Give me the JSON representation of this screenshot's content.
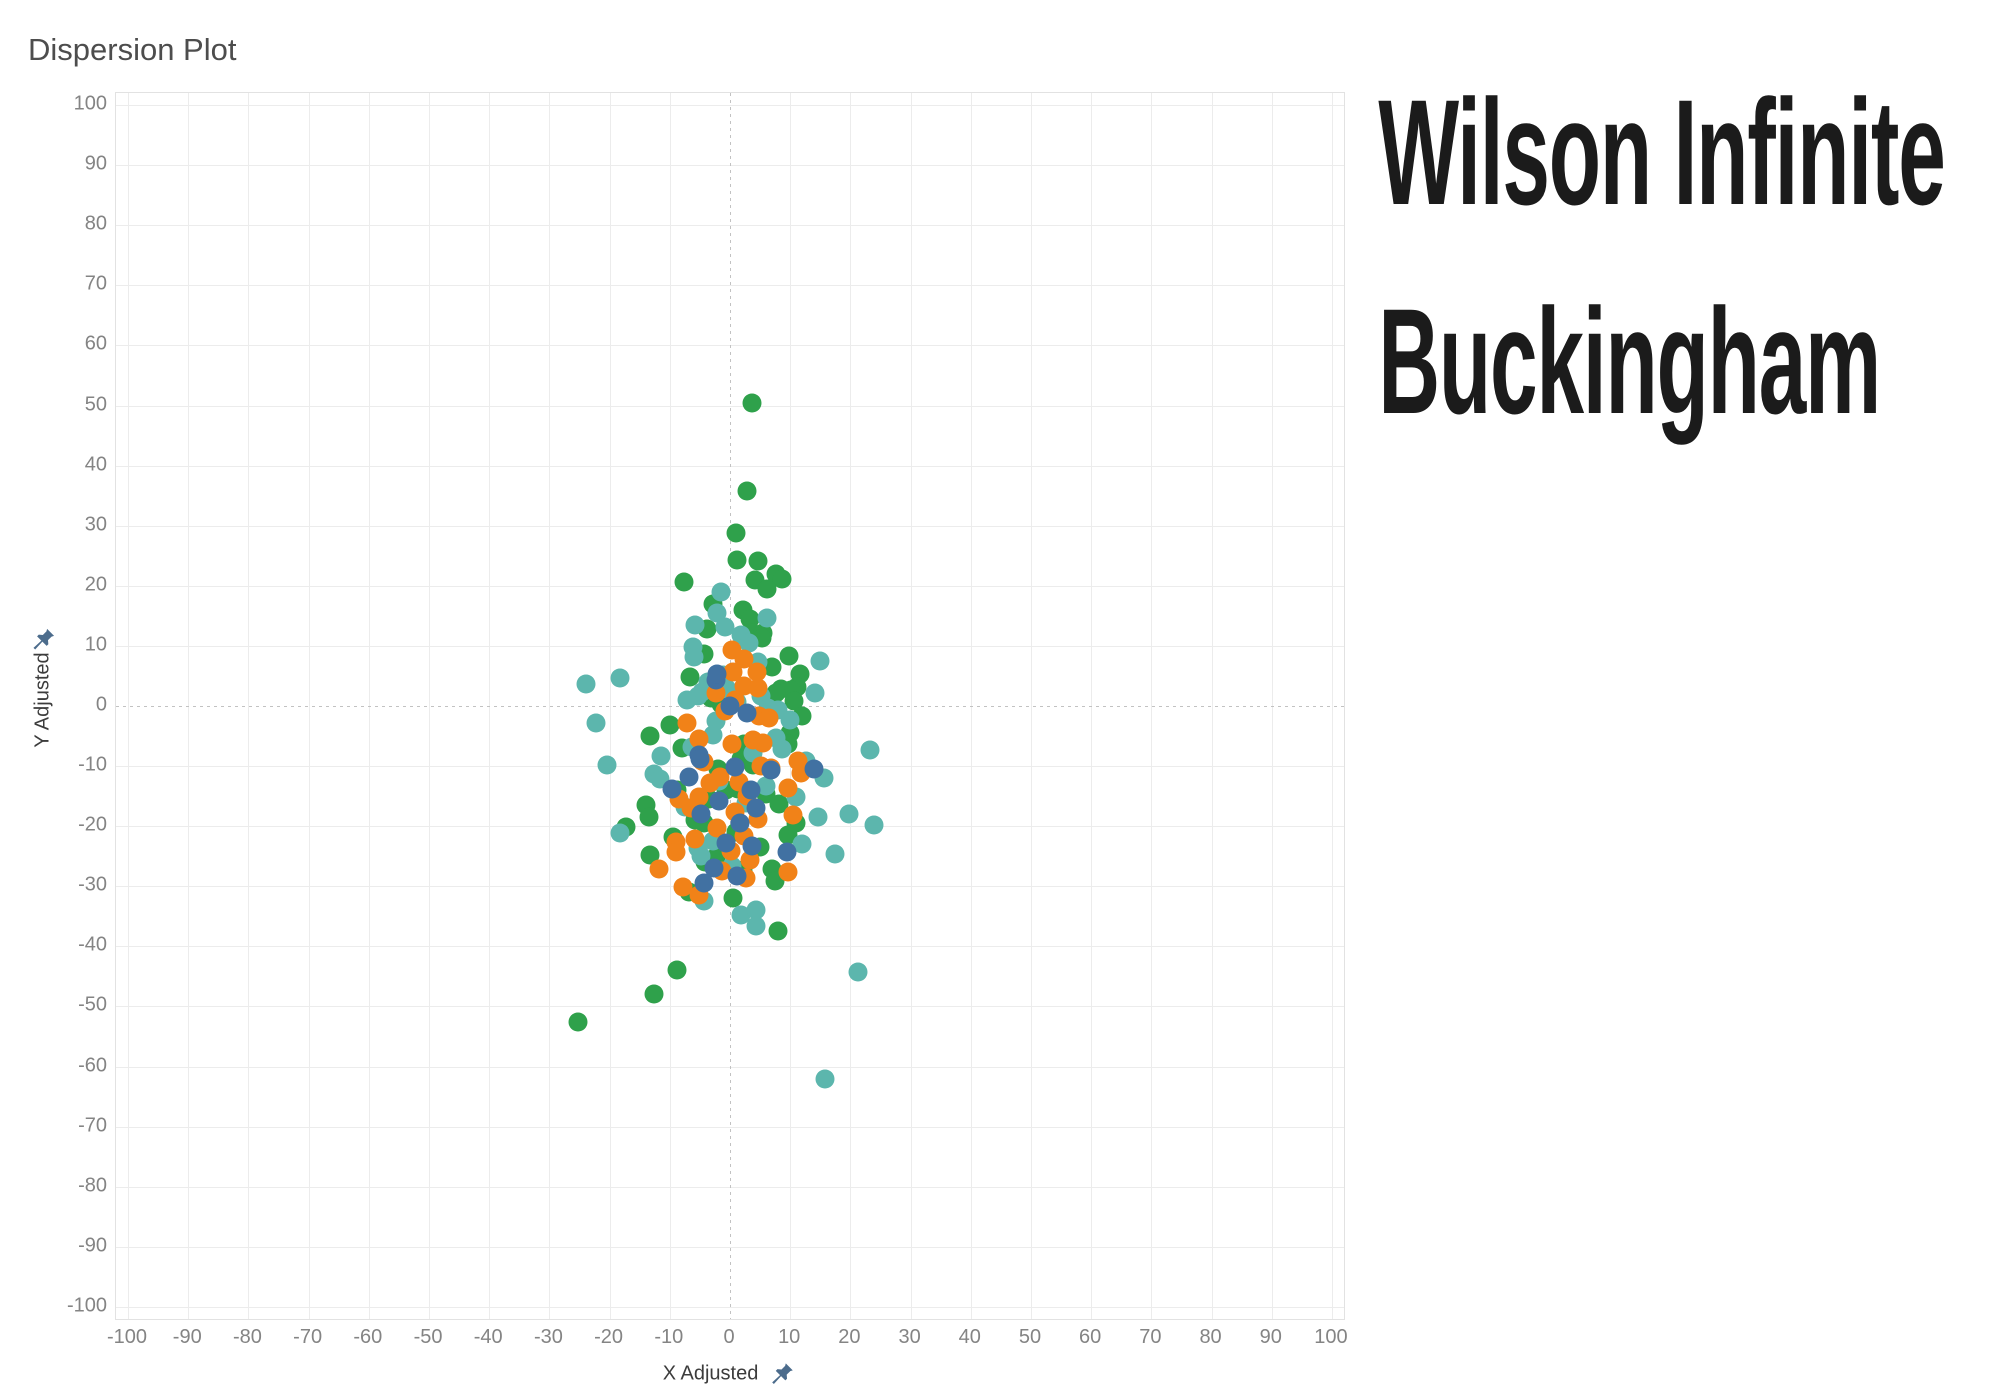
{
  "page_title": "Dispersion Plot",
  "headline": {
    "line1": "Wilson Infinite",
    "line2": "Buckingham"
  },
  "colors": {
    "green": "#2fa14b",
    "teal": "#5cb6ad",
    "orange": "#f18218",
    "blue": "#4171a2",
    "grid": "#ececec",
    "zero_line": "#c2c2c2",
    "tick_text": "#848484",
    "axis_title_text": "#3c3c3c",
    "headline_text": "#1b1b1b",
    "pin": "#4c6c8c"
  },
  "icons": {
    "pin": "pushpin-icon"
  },
  "chart_data": {
    "type": "scatter",
    "title": "Dispersion Plot",
    "xlabel": "X Adjusted",
    "ylabel": "Y Adjusted",
    "xlim": [
      -102,
      102
    ],
    "ylim": [
      -102,
      102
    ],
    "x_ticks": [
      -100,
      -90,
      -80,
      -70,
      -60,
      -50,
      -40,
      -30,
      -20,
      -10,
      0,
      10,
      20,
      30,
      40,
      50,
      60,
      70,
      80,
      90,
      100
    ],
    "y_ticks": [
      100,
      90,
      80,
      70,
      60,
      50,
      40,
      30,
      20,
      10,
      0,
      -10,
      -20,
      -30,
      -40,
      -50,
      -60,
      -70,
      -80,
      -90,
      -100
    ],
    "grid": true,
    "zero_lines_dashed": true,
    "legend": "none",
    "marker_size_px": 19,
    "series": [
      {
        "name": "green",
        "color": "#2fa14b",
        "points": [
          [
            3.6,
            50.5
          ],
          [
            2.9,
            35.8
          ],
          [
            1,
            28.8
          ],
          [
            1.1,
            24.3
          ],
          [
            4.7,
            24.1
          ],
          [
            -7.6,
            20.6
          ],
          [
            4.2,
            20.9
          ],
          [
            7.6,
            21.9
          ],
          [
            8.6,
            21.2
          ],
          [
            6.2,
            19.4
          ],
          [
            -2.8,
            17
          ],
          [
            2.1,
            15.9
          ],
          [
            3.4,
            14.4
          ],
          [
            -3.9,
            12.8
          ],
          [
            3.7,
            12.2
          ],
          [
            5.5,
            12.2
          ],
          [
            5.3,
            11.3
          ],
          [
            9.8,
            8.3
          ],
          [
            -4.4,
            8.6
          ],
          [
            7,
            6.5
          ],
          [
            11.7,
            5.3
          ],
          [
            -6.6,
            4.9
          ],
          [
            8.4,
            2.9
          ],
          [
            11.2,
            3.2
          ],
          [
            10.1,
            2.7
          ],
          [
            7.6,
            2.2
          ],
          [
            10.6,
            0.8
          ],
          [
            -3.1,
            1.3
          ],
          [
            -1.5,
            0.3
          ],
          [
            12,
            -1.6
          ],
          [
            -10,
            -3.1
          ],
          [
            10,
            -4.5
          ],
          [
            -13.3,
            -5
          ],
          [
            2.3,
            -6.4
          ],
          [
            9.7,
            -6.3
          ],
          [
            -8,
            -7
          ],
          [
            1.8,
            -8.9
          ],
          [
            3.8,
            -9.8
          ],
          [
            -2,
            -10.5
          ],
          [
            -0.6,
            -13.9
          ],
          [
            1.3,
            -13.8
          ],
          [
            5.9,
            -14.6
          ],
          [
            -8.8,
            -13.9
          ],
          [
            -3.5,
            -15.5
          ],
          [
            8.2,
            -16.3
          ],
          [
            -13.9,
            -16.5
          ],
          [
            -5.8,
            -19
          ],
          [
            -4.3,
            -19.5
          ],
          [
            -13.5,
            -18.5
          ],
          [
            -17.2,
            -20.1
          ],
          [
            1,
            -20.9
          ],
          [
            -9.5,
            -21.8
          ],
          [
            9.7,
            -21.4
          ],
          [
            11,
            -19.5
          ],
          [
            5,
            -23.5
          ],
          [
            -13.3,
            -24.8
          ],
          [
            -2.4,
            -25.2
          ],
          [
            -4.1,
            -25.9
          ],
          [
            2.2,
            -27.3
          ],
          [
            7,
            -27.2
          ],
          [
            -6.8,
            -31
          ],
          [
            7.4,
            -29.2
          ],
          [
            0.5,
            -31.9
          ],
          [
            7.9,
            -37.5
          ],
          [
            -8.8,
            -44
          ],
          [
            -12.6,
            -48
          ],
          [
            -25.3,
            -52.5
          ]
        ]
      },
      {
        "name": "teal",
        "color": "#5cb6ad",
        "points": [
          [
            -1.5,
            19
          ],
          [
            -2.2,
            15.5
          ],
          [
            6.2,
            14.6
          ],
          [
            -5.8,
            13.5
          ],
          [
            -0.8,
            13.1
          ],
          [
            1.8,
            11.8
          ],
          [
            3.2,
            10.5
          ],
          [
            -6.2,
            9.9
          ],
          [
            -6,
            8.1
          ],
          [
            4.7,
            7.3
          ],
          [
            15,
            7.5
          ],
          [
            14.1,
            2.1
          ],
          [
            -24,
            3.6
          ],
          [
            -18.3,
            4.7
          ],
          [
            -22.2,
            -2.8
          ],
          [
            -20.4,
            -9.9
          ],
          [
            -5.3,
            1.6
          ],
          [
            -2.3,
            -2.5
          ],
          [
            -2.9,
            -4.8
          ],
          [
            5.1,
            1.6
          ],
          [
            6.3,
            -0.3
          ],
          [
            7.9,
            -0.7
          ],
          [
            -0.5,
            2.8
          ],
          [
            -4.6,
            2.4
          ],
          [
            -7.2,
            1
          ],
          [
            -3.7,
            4
          ],
          [
            -1.2,
            5.2
          ],
          [
            1.2,
            0.6
          ],
          [
            9.9,
            -2.3
          ],
          [
            7.6,
            -5.3
          ],
          [
            8.6,
            -7.1
          ],
          [
            3.8,
            -7.8
          ],
          [
            -6.3,
            -6.8
          ],
          [
            -11.5,
            -8.4
          ],
          [
            12.6,
            -9.1
          ],
          [
            -12.6,
            -11.3
          ],
          [
            -11.7,
            -12.2
          ],
          [
            6,
            -13.3
          ],
          [
            -1.8,
            -12.4
          ],
          [
            15.6,
            -12
          ],
          [
            11,
            -15.2
          ],
          [
            -7.4,
            -16.8
          ],
          [
            2.7,
            -16.2
          ],
          [
            -18.3,
            -21.1
          ],
          [
            -2.9,
            -22.5
          ],
          [
            -5.3,
            -23.7
          ],
          [
            14.6,
            -18.5
          ],
          [
            19.8,
            -18
          ],
          [
            12,
            -23
          ],
          [
            17.5,
            -24.6
          ],
          [
            -4.9,
            -25
          ],
          [
            0.4,
            -26.6
          ],
          [
            -4.3,
            -32.5
          ],
          [
            1.8,
            -34.7
          ],
          [
            4.3,
            -34
          ],
          [
            4.3,
            -36.6
          ],
          [
            23.3,
            -7.3
          ],
          [
            24,
            -19.8
          ],
          [
            21.2,
            -44.2
          ],
          [
            15.7,
            -62
          ]
        ]
      },
      {
        "name": "orange",
        "color": "#f18218",
        "points": [
          [
            0.3,
            9.4
          ],
          [
            2.3,
            7.8
          ],
          [
            0.5,
            5.7
          ],
          [
            4.5,
            5.7
          ],
          [
            2.3,
            3.3
          ],
          [
            4.6,
            3
          ],
          [
            -2.4,
            2.1
          ],
          [
            0.8,
            1
          ],
          [
            -7.1,
            -2.8
          ],
          [
            4.8,
            -1.7
          ],
          [
            6.5,
            -2
          ],
          [
            -0.9,
            -0.8
          ],
          [
            -5.2,
            -5.5
          ],
          [
            3.8,
            -5.6
          ],
          [
            5.5,
            -6.1
          ],
          [
            0.3,
            -6.4
          ],
          [
            -4.7,
            -9.2
          ],
          [
            -4.3,
            -9.4
          ],
          [
            5.1,
            -10
          ],
          [
            6.8,
            -10.3
          ],
          [
            11.3,
            -9.1
          ],
          [
            11.8,
            -11.1
          ],
          [
            -1.6,
            -11.8
          ],
          [
            1.5,
            -12.6
          ],
          [
            -3.4,
            -12.8
          ],
          [
            9.7,
            -13.6
          ],
          [
            -8.4,
            -15.4
          ],
          [
            -5.2,
            -15.1
          ],
          [
            2.8,
            -14.9
          ],
          [
            -6.5,
            -17
          ],
          [
            0.9,
            -17.6
          ],
          [
            4.6,
            -18.8
          ],
          [
            10.4,
            -18.2
          ],
          [
            -2.2,
            -20.3
          ],
          [
            2.4,
            -21.6
          ],
          [
            -5.8,
            -22.2
          ],
          [
            -8.9,
            -22.7
          ],
          [
            -8.9,
            -24.3
          ],
          [
            0.2,
            -24.2
          ],
          [
            3.4,
            -25.7
          ],
          [
            -1.4,
            -27.4
          ],
          [
            -11.8,
            -27.1
          ],
          [
            9.7,
            -27.6
          ],
          [
            -7.8,
            -30.2
          ],
          [
            -5.1,
            -31.4
          ],
          [
            2.6,
            -28.6
          ]
        ]
      },
      {
        "name": "blue",
        "color": "#4171a2",
        "points": [
          [
            0,
            0
          ],
          [
            -2.3,
            4.4
          ],
          [
            -2.1,
            5.3
          ],
          [
            2.9,
            -1.2
          ],
          [
            -5.1,
            -8.1
          ],
          [
            -5,
            -8.9
          ],
          [
            -6.8,
            -11.8
          ],
          [
            -9.6,
            -13.8
          ],
          [
            3.5,
            -13.9
          ],
          [
            0.8,
            -10.2
          ],
          [
            13.9,
            -10.4
          ],
          [
            -1.9,
            -15.8
          ],
          [
            4.4,
            -16.9
          ],
          [
            -4.9,
            -18
          ],
          [
            1.6,
            -19.4
          ],
          [
            6.8,
            -10.6
          ],
          [
            -0.6,
            -22.8
          ],
          [
            3.7,
            -23.3
          ],
          [
            9.4,
            -24.3
          ],
          [
            -2.6,
            -26.9
          ],
          [
            1.2,
            -28.3
          ],
          [
            -4.3,
            -29.5
          ]
        ]
      }
    ]
  }
}
